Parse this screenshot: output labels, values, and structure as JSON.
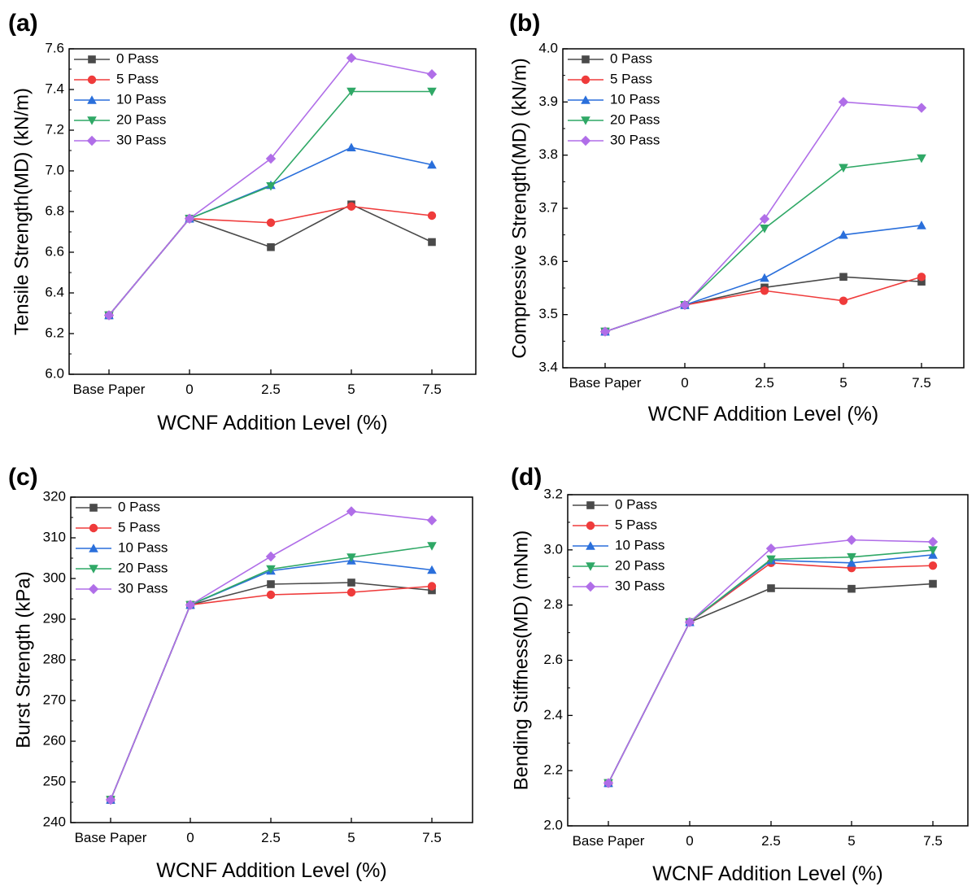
{
  "colors": {
    "0 Pass": "#4a4a4a",
    "5 Pass": "#ef3b3b",
    "10 Pass": "#2a6fdb",
    "20 Pass": "#2fa866",
    "30 Pass": "#b06ee8",
    "axis": "#000000"
  },
  "chart_data": [
    {
      "type": "line",
      "panel_label": "(a)",
      "title": "",
      "categories": [
        "Base Paper",
        "0",
        "2.5",
        "5",
        "7.5"
      ],
      "xlabel": "WCNF Addition Level (%)",
      "ylabel": "Tensile Strength(MD) (kN/m)",
      "ylim": [
        6.0,
        7.6
      ],
      "yticks": [
        "6.0",
        "6.2",
        "6.4",
        "6.6",
        "6.8",
        "7.0",
        "7.2",
        "7.4",
        "7.6"
      ],
      "legend_position": "top-left",
      "series": [
        {
          "name": "0 Pass",
          "marker": "square",
          "values": [
            6.29,
            6.765,
            6.625,
            6.835,
            6.65
          ]
        },
        {
          "name": "5 Pass",
          "marker": "circle",
          "values": [
            6.29,
            6.765,
            6.745,
            6.825,
            6.78
          ]
        },
        {
          "name": "10 Pass",
          "marker": "triangle-up",
          "values": [
            6.29,
            6.765,
            6.93,
            7.115,
            7.03
          ]
        },
        {
          "name": "20 Pass",
          "marker": "triangle-down",
          "values": [
            6.29,
            6.765,
            6.925,
            7.39,
            7.39
          ]
        },
        {
          "name": "30 Pass",
          "marker": "diamond",
          "values": [
            6.29,
            6.765,
            7.06,
            7.555,
            7.475
          ]
        }
      ]
    },
    {
      "type": "line",
      "panel_label": "(b)",
      "title": "",
      "categories": [
        "Base Paper",
        "0",
        "2.5",
        "5",
        "7.5"
      ],
      "xlabel": "WCNF Addition Level (%)",
      "ylabel": "Compressive Strength(MD) (kN/m)",
      "ylim": [
        3.4,
        4.0
      ],
      "yticks": [
        "3.4",
        "3.5",
        "3.6",
        "3.7",
        "3.8",
        "3.9",
        "4.0"
      ],
      "legend_position": "top-left",
      "series": [
        {
          "name": "0 Pass",
          "marker": "square",
          "values": [
            3.468,
            3.518,
            3.551,
            3.571,
            3.562
          ]
        },
        {
          "name": "5 Pass",
          "marker": "circle",
          "values": [
            3.468,
            3.518,
            3.545,
            3.526,
            3.571
          ]
        },
        {
          "name": "10 Pass",
          "marker": "triangle-up",
          "values": [
            3.468,
            3.518,
            3.569,
            3.65,
            3.668
          ]
        },
        {
          "name": "20 Pass",
          "marker": "triangle-down",
          "values": [
            3.468,
            3.518,
            3.662,
            3.776,
            3.794
          ]
        },
        {
          "name": "30 Pass",
          "marker": "diamond",
          "values": [
            3.468,
            3.518,
            3.68,
            3.9,
            3.889
          ]
        }
      ]
    },
    {
      "type": "line",
      "panel_label": "(c)",
      "title": "",
      "categories": [
        "Base Paper",
        "0",
        "2.5",
        "5",
        "7.5"
      ],
      "xlabel": "WCNF Addition Level (%)",
      "ylabel": "Burst Strength (kPa)",
      "ylim": [
        240,
        320
      ],
      "yticks": [
        "240",
        "250",
        "260",
        "270",
        "280",
        "290",
        "300",
        "310",
        "320"
      ],
      "legend_position": "top-left",
      "series": [
        {
          "name": "0 Pass",
          "marker": "square",
          "values": [
            245.6,
            293.5,
            298.6,
            299.0,
            297.1
          ]
        },
        {
          "name": "5 Pass",
          "marker": "circle",
          "values": [
            245.6,
            293.5,
            296.0,
            296.6,
            298.1
          ]
        },
        {
          "name": "10 Pass",
          "marker": "triangle-up",
          "values": [
            245.6,
            293.5,
            301.9,
            304.4,
            302.1
          ]
        },
        {
          "name": "20 Pass",
          "marker": "triangle-down",
          "values": [
            245.6,
            293.5,
            302.3,
            305.2,
            308.0
          ]
        },
        {
          "name": "30 Pass",
          "marker": "diamond",
          "values": [
            245.6,
            293.5,
            305.4,
            316.5,
            314.3
          ]
        }
      ]
    },
    {
      "type": "line",
      "panel_label": "(d)",
      "title": "",
      "categories": [
        "Base Paper",
        "0",
        "2.5",
        "5",
        "7.5"
      ],
      "xlabel": "WCNF Addition Level (%)",
      "ylabel": "Bending Stiffness(MD) (mNm)",
      "ylim": [
        2.0,
        3.2
      ],
      "yticks": [
        "2.0",
        "2.2",
        "2.4",
        "2.6",
        "2.8",
        "3.0",
        "3.2"
      ],
      "legend_position": "top-left",
      "series": [
        {
          "name": "0 Pass",
          "marker": "square",
          "values": [
            2.155,
            2.738,
            2.861,
            2.859,
            2.877
          ]
        },
        {
          "name": "5 Pass",
          "marker": "circle",
          "values": [
            2.155,
            2.738,
            2.953,
            2.934,
            2.943
          ]
        },
        {
          "name": "10 Pass",
          "marker": "triangle-up",
          "values": [
            2.155,
            2.738,
            2.962,
            2.953,
            2.982
          ]
        },
        {
          "name": "20 Pass",
          "marker": "triangle-down",
          "values": [
            2.155,
            2.738,
            2.966,
            2.974,
            2.999
          ]
        },
        {
          "name": "30 Pass",
          "marker": "diamond",
          "values": [
            2.155,
            2.738,
            3.005,
            3.036,
            3.029
          ]
        }
      ]
    }
  ]
}
